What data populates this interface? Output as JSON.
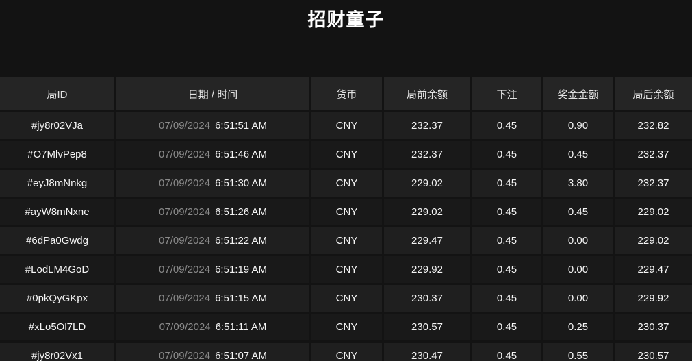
{
  "title": "招财童子",
  "colors": {
    "page_background": "#131313",
    "header_cell_background": "#252525",
    "row_odd_background": "#1f1f1f",
    "row_even_background": "#191919",
    "primary_text": "#f5f5f5",
    "header_text": "#e3e3e3",
    "date_text": "#8a8a8a"
  },
  "table": {
    "columns": [
      {
        "key": "round_id",
        "label": "局ID"
      },
      {
        "key": "datetime",
        "label": "日期 / 时间"
      },
      {
        "key": "currency",
        "label": "货币"
      },
      {
        "key": "balance_before",
        "label": "局前余额"
      },
      {
        "key": "bet",
        "label": "下注"
      },
      {
        "key": "prize",
        "label": "奖金金额"
      },
      {
        "key": "balance_after",
        "label": "局后余额"
      }
    ],
    "rows": [
      {
        "round_id": "#jy8r02VJa",
        "date": "07/09/2024",
        "time": "6:51:51 AM",
        "currency": "CNY",
        "balance_before": "232.37",
        "bet": "0.45",
        "prize": "0.90",
        "balance_after": "232.82"
      },
      {
        "round_id": "#O7MlvPep8",
        "date": "07/09/2024",
        "time": "6:51:46 AM",
        "currency": "CNY",
        "balance_before": "232.37",
        "bet": "0.45",
        "prize": "0.45",
        "balance_after": "232.37"
      },
      {
        "round_id": "#eyJ8mNnkg",
        "date": "07/09/2024",
        "time": "6:51:30 AM",
        "currency": "CNY",
        "balance_before": "229.02",
        "bet": "0.45",
        "prize": "3.80",
        "balance_after": "232.37"
      },
      {
        "round_id": "#ayW8mNxne",
        "date": "07/09/2024",
        "time": "6:51:26 AM",
        "currency": "CNY",
        "balance_before": "229.02",
        "bet": "0.45",
        "prize": "0.45",
        "balance_after": "229.02"
      },
      {
        "round_id": "#6dPa0Gwdg",
        "date": "07/09/2024",
        "time": "6:51:22 AM",
        "currency": "CNY",
        "balance_before": "229.47",
        "bet": "0.45",
        "prize": "0.00",
        "balance_after": "229.02"
      },
      {
        "round_id": "#LodLM4GoD",
        "date": "07/09/2024",
        "time": "6:51:19 AM",
        "currency": "CNY",
        "balance_before": "229.92",
        "bet": "0.45",
        "prize": "0.00",
        "balance_after": "229.47"
      },
      {
        "round_id": "#0pkQyGKpx",
        "date": "07/09/2024",
        "time": "6:51:15 AM",
        "currency": "CNY",
        "balance_before": "230.37",
        "bet": "0.45",
        "prize": "0.00",
        "balance_after": "229.92"
      },
      {
        "round_id": "#xLo5Ol7LD",
        "date": "07/09/2024",
        "time": "6:51:11 AM",
        "currency": "CNY",
        "balance_before": "230.57",
        "bet": "0.45",
        "prize": "0.25",
        "balance_after": "230.37"
      },
      {
        "round_id": "#jy8r02Vx1",
        "date": "07/09/2024",
        "time": "6:51:07 AM",
        "currency": "CNY",
        "balance_before": "230.47",
        "bet": "0.45",
        "prize": "0.55",
        "balance_after": "230.57"
      }
    ]
  }
}
